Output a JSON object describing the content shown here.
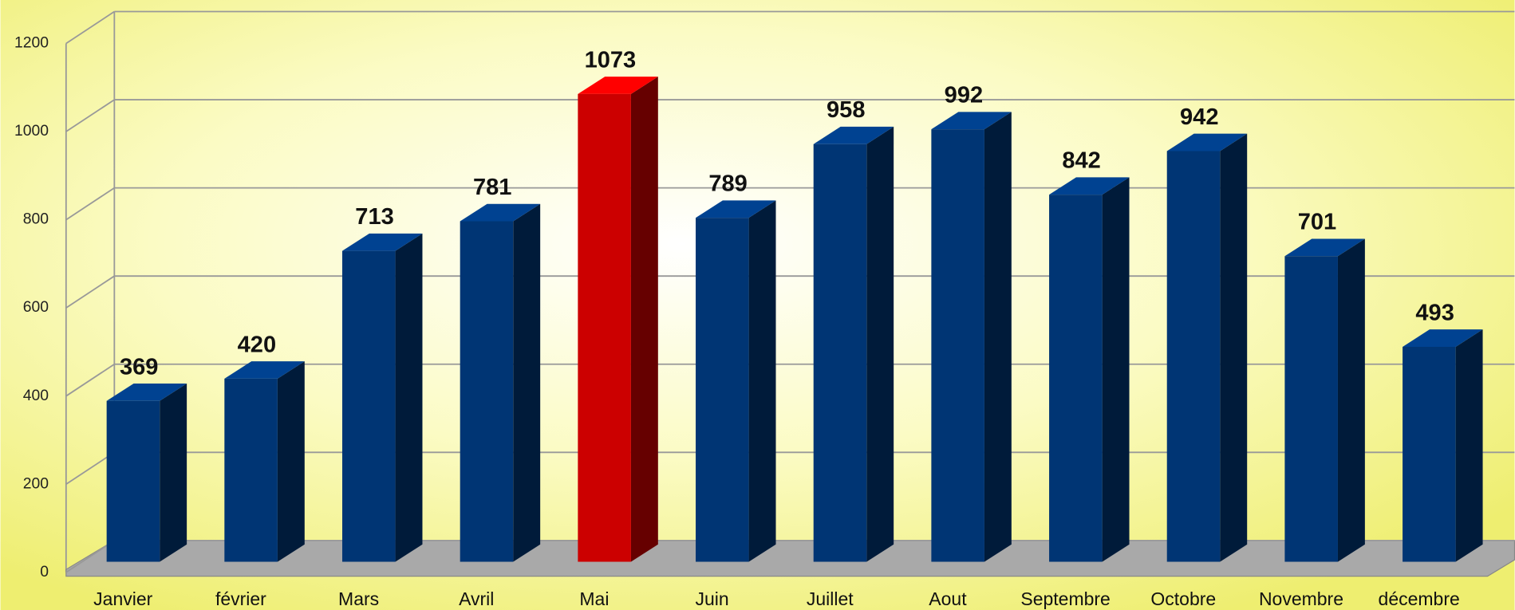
{
  "chart_data": {
    "type": "bar3d",
    "categories": [
      "Janvier",
      "février",
      "Mars",
      "Avril",
      "Mai",
      "Juin",
      "Juillet",
      "Aout",
      "Septembre",
      "Octobre",
      "Novembre",
      "décembre"
    ],
    "values": [
      369,
      420,
      713,
      781,
      1073,
      789,
      958,
      992,
      842,
      942,
      701,
      493
    ],
    "colors": [
      "#003574",
      "#003574",
      "#003574",
      "#003574",
      "#cc0000",
      "#003574",
      "#003574",
      "#003574",
      "#003574",
      "#003574",
      "#003574",
      "#003574"
    ],
    "ylim": [
      0,
      1200
    ],
    "yticks": [
      0,
      200,
      400,
      600,
      800,
      1000,
      1200
    ],
    "grid": true
  }
}
